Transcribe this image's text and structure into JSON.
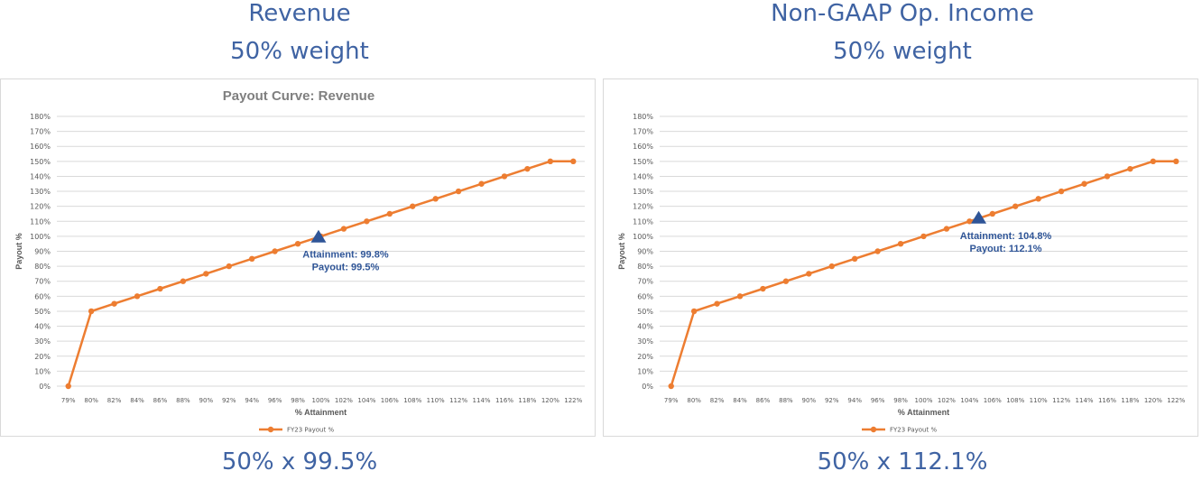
{
  "panels": [
    {
      "title": "Revenue",
      "weight": "50% weight",
      "formula": "50% x 99.5%"
    },
    {
      "title": "Non-GAAP Op. Income",
      "weight": "50% weight",
      "formula": "50% x 112.1%"
    }
  ],
  "colors": {
    "heading": "#3f63a3",
    "line": "#ed7d31",
    "marker": "#2f5597",
    "grid": "#d9d9d9"
  },
  "chart_data": [
    {
      "type": "line",
      "title": "Payout Curve: Revenue",
      "xlabel": "% Attainment",
      "ylabel": "Payout %",
      "categories": [
        "79%",
        "80%",
        "82%",
        "84%",
        "86%",
        "88%",
        "90%",
        "92%",
        "94%",
        "96%",
        "98%",
        "100%",
        "102%",
        "104%",
        "106%",
        "108%",
        "110%",
        "112%",
        "114%",
        "116%",
        "118%",
        "120%",
        "122%"
      ],
      "series": [
        {
          "name": "FY23 Payout %",
          "values": [
            0,
            50,
            55,
            60,
            65,
            70,
            75,
            80,
            85,
            90,
            95,
            100,
            105,
            110,
            115,
            120,
            125,
            130,
            135,
            140,
            145,
            150,
            150
          ]
        }
      ],
      "yticks": [
        "0%",
        "10%",
        "20%",
        "30%",
        "40%",
        "50%",
        "60%",
        "70%",
        "80%",
        "90%",
        "100%",
        "110%",
        "120%",
        "130%",
        "140%",
        "150%",
        "160%",
        "170%",
        "180%"
      ],
      "ylim": [
        0,
        180
      ],
      "grid": true,
      "legend": "bottom",
      "marker": {
        "shape": "triangle",
        "attainment": 99.8,
        "payout": 99.5
      },
      "annotation": [
        "Attainment: 99.8%",
        "Payout: 99.5%"
      ]
    },
    {
      "type": "line",
      "title": "",
      "xlabel": "% Attainment",
      "ylabel": "Payout %",
      "categories": [
        "79%",
        "80%",
        "82%",
        "84%",
        "86%",
        "88%",
        "90%",
        "92%",
        "94%",
        "96%",
        "98%",
        "100%",
        "102%",
        "104%",
        "106%",
        "108%",
        "110%",
        "112%",
        "114%",
        "116%",
        "118%",
        "120%",
        "122%"
      ],
      "series": [
        {
          "name": "FY23 Payout %",
          "values": [
            0,
            50,
            55,
            60,
            65,
            70,
            75,
            80,
            85,
            90,
            95,
            100,
            105,
            110,
            115,
            120,
            125,
            130,
            135,
            140,
            145,
            150,
            150
          ]
        }
      ],
      "yticks": [
        "0%",
        "10%",
        "20%",
        "30%",
        "40%",
        "50%",
        "60%",
        "70%",
        "80%",
        "90%",
        "100%",
        "110%",
        "120%",
        "130%",
        "140%",
        "150%",
        "160%",
        "170%",
        "180%"
      ],
      "ylim": [
        0,
        180
      ],
      "grid": true,
      "legend": "bottom",
      "marker": {
        "shape": "triangle",
        "attainment": 104.8,
        "payout": 112.1
      },
      "annotation": [
        "Attainment: 104.8%",
        "Payout: 112.1%"
      ]
    }
  ]
}
